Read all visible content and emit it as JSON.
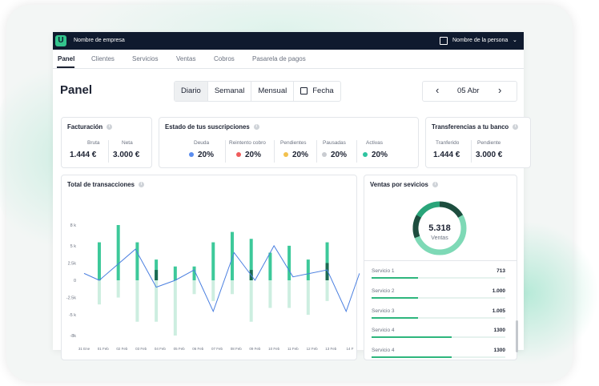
{
  "topbar": {
    "logo": "U",
    "company": "Nombre de empresa",
    "person": "Nombre de la persona"
  },
  "nav": {
    "tabs": [
      "Panel",
      "Clientes",
      "Servicios",
      "Ventas",
      "Cobros",
      "Pasarela de pagos"
    ]
  },
  "page": {
    "title": "Panel"
  },
  "periods": [
    "Diario",
    "Semanal",
    "Mensual",
    "Fecha"
  ],
  "date_nav": {
    "date": "05 Abr",
    "prev": "‹",
    "next": "›"
  },
  "facturacion": {
    "title": "Facturación",
    "bruta_label": "Bruta",
    "bruta_value": "1.444 €",
    "neta_label": "Neta",
    "neta_value": "3.000 €"
  },
  "suscripciones": {
    "title": "Estado de tus suscripciones",
    "items": [
      {
        "label": "Deuda",
        "value": "20%",
        "color": "#5b8def"
      },
      {
        "label": "Reintento cobro",
        "value": "20%",
        "color": "#ef5b5b"
      },
      {
        "label": "Pendientes",
        "value": "20%",
        "color": "#f2c14e"
      },
      {
        "label": "Pausadas",
        "value": "20%",
        "color": "#c9ccd1"
      },
      {
        "label": "Activas",
        "value": "20%",
        "color": "#2ec4a0"
      }
    ]
  },
  "transferencias": {
    "title": "Transferencias a tu banco",
    "transferido_label": "Tranferido",
    "transferido_value": "1.444 €",
    "pendiente_label": "Pendiente",
    "pendiente_value": "3.000 €"
  },
  "transacciones": {
    "title": "Total de transacciones"
  },
  "ventas": {
    "title": "Ventas por sevicios",
    "total": "5.318",
    "total_label": "Ventas",
    "services": [
      {
        "label": "Servicio 1",
        "value": "713",
        "fraction": 0.35
      },
      {
        "label": "Servicio 2",
        "value": "1.000",
        "fraction": 0.35
      },
      {
        "label": "Servicio 3",
        "value": "1.005",
        "fraction": 0.35
      },
      {
        "label": "Servicio 4",
        "value": "1300",
        "fraction": 0.6
      },
      {
        "label": "Servicio 4",
        "value": "1300",
        "fraction": 0.6
      }
    ]
  },
  "chart_data": {
    "type": "bar",
    "title": "Total de transacciones",
    "ylim": [
      -8,
      8
    ],
    "y_ticks": [
      "8 k",
      "5 k",
      "2.5k",
      "0",
      "-2.5k",
      "-5 k",
      "-8k"
    ],
    "y_tick_values": [
      8,
      5,
      2.5,
      0,
      -2.5,
      -5,
      -8
    ],
    "categories": [
      "31 Ene",
      "01 Feb",
      "02 Feb",
      "03 Feb",
      "04 Feb",
      "05 Feb",
      "06 Feb",
      "07 Feb",
      "08 Feb",
      "09 Feb",
      "10 Feb",
      "11 Feb",
      "12 Feb",
      "13 Feb",
      "14 F"
    ],
    "bar_positions": [
      0.8,
      1.8,
      2.8,
      3.8,
      4.8,
      5.8,
      6.8,
      7.8,
      8.8,
      9.8,
      10.8,
      11.8,
      12.8
    ],
    "series": [
      {
        "values_pos": [
          5.5,
          8.0,
          5.5,
          3.0,
          2.0,
          2.0,
          5.5,
          7.0,
          6.0,
          4.0,
          5.0,
          3.0,
          5.5
        ],
        "values_neg": [
          -3.5,
          -2.5,
          -6.0,
          -6.0,
          -8.0,
          -2.0,
          -3.0,
          -2.0,
          -6.0,
          -4.0,
          -4.0,
          -5.0,
          -3.0
        ],
        "color_pos": "#3dc99a",
        "color_neg": "#cdeee0"
      },
      {
        "values_pos": [
          0,
          0,
          0,
          1.5,
          0,
          0,
          0,
          0,
          1.5,
          0,
          0,
          0,
          2.5
        ],
        "color": "#1a6b52"
      }
    ],
    "line": {
      "x": [
        0,
        0.8,
        2.7,
        3.8,
        4.8,
        5.8,
        6.8,
        7.9,
        9.0,
        10.0,
        11.0,
        12.8,
        13.8,
        14.5
      ],
      "y": [
        1.0,
        0,
        4.5,
        -1.0,
        0,
        1.5,
        -4.5,
        4.0,
        0,
        5.0,
        0.5,
        1.5,
        -4.5,
        1.0
      ],
      "color": "#4a7fe0"
    },
    "grid": false
  }
}
